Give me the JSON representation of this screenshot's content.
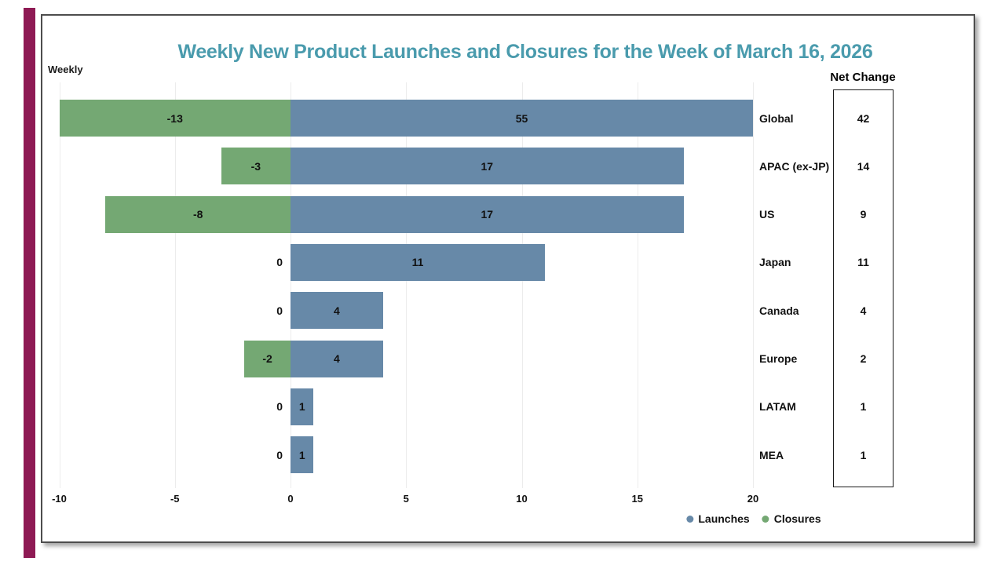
{
  "colors": {
    "accent_stripe": "#8E1A54",
    "title": "#4A9BAD",
    "launches": "#6789A8",
    "closures": "#74A873",
    "grid": "#ececec",
    "text": "#111111"
  },
  "chart_data": {
    "type": "bar",
    "orientation": "horizontal",
    "title": "Weekly New Product Launches and Closures for the Week of March 16, 2026",
    "corner_label": "Weekly",
    "categories": [
      "Global",
      "APAC (ex-JP)",
      "US",
      "Japan",
      "Canada",
      "Europe",
      "LATAM",
      "MEA"
    ],
    "series": [
      {
        "name": "Launches",
        "color": "#6789A8",
        "values": [
          55,
          17,
          17,
          11,
          4,
          4,
          1,
          1
        ]
      },
      {
        "name": "Closures",
        "color": "#74A873",
        "values": [
          -13,
          -3,
          -8,
          0,
          0,
          -2,
          0,
          0
        ]
      }
    ],
    "bar_labels": {
      "launches": [
        "55",
        "17",
        "17",
        "11",
        "4",
        "4",
        "1",
        "1"
      ],
      "closures": [
        "-13",
        "-3",
        "-8",
        "0",
        "0",
        "-2",
        "0",
        "0"
      ]
    },
    "net_change": {
      "header": "Net Change",
      "values": [
        42,
        14,
        9,
        11,
        4,
        2,
        1,
        1
      ]
    },
    "xlabel": "",
    "ylabel": "",
    "xlim": [
      -10,
      20
    ],
    "xticks": [
      -10,
      -5,
      0,
      5,
      10,
      15,
      20
    ],
    "grid": true,
    "legend": [
      "Launches",
      "Closures"
    ],
    "legend_position": "bottom-right"
  }
}
